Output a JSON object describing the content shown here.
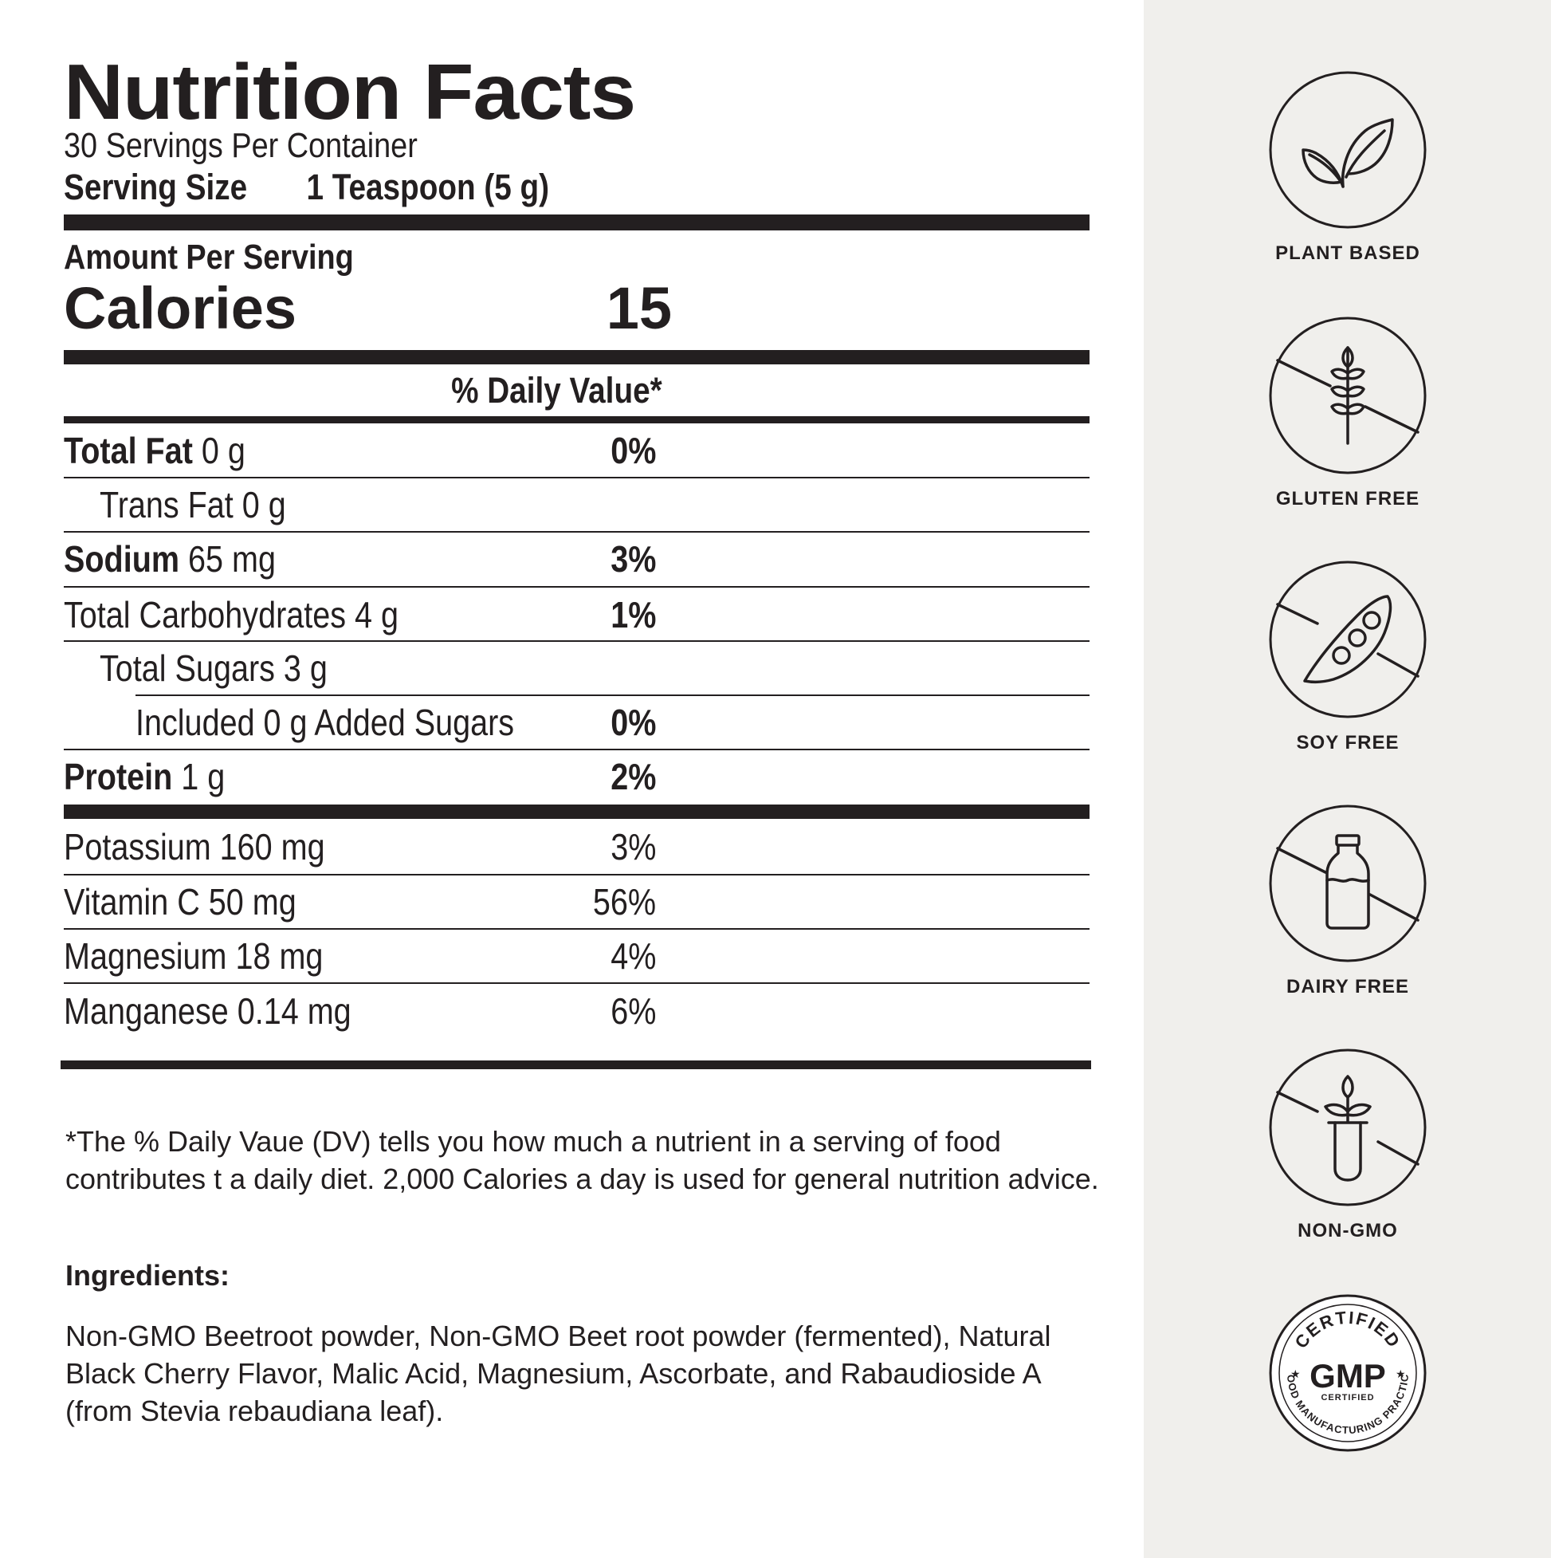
{
  "nutrition_facts": {
    "title": "Nutrition Facts",
    "servings_per_container": "30 Servings Per Container",
    "serving_size_label": "Serving Size",
    "serving_size_value": "1 Teaspoon (5 g)",
    "amount_per_serving": "Amount Per Serving",
    "calories_label": "Calories",
    "calories_value": "15",
    "daily_value_header": "% Daily Value*",
    "rows": [
      {
        "name": "Total Fat",
        "amount": " 0 g",
        "dv": "0%"
      },
      {
        "name": "",
        "amount": "Trans Fat 0 g",
        "dv": ""
      },
      {
        "name": "Sodium",
        "amount": " 65 mg",
        "dv": "3%"
      },
      {
        "name": "",
        "amount": "Total Carbohydrates 4 g",
        "dv": "1%"
      },
      {
        "name": "",
        "amount": "Total Sugars 3 g",
        "dv": ""
      },
      {
        "name": "",
        "amount": "Included 0 g Added Sugars",
        "dv": "0%"
      },
      {
        "name": "Protein",
        "amount": " 1 g",
        "dv": "2%"
      }
    ],
    "minerals": [
      {
        "label": "Potassium 160 mg",
        "dv": "3%"
      },
      {
        "label": "Vitamin C 50 mg",
        "dv": "56%"
      },
      {
        "label": "Magnesium 18 mg",
        "dv": "4%"
      },
      {
        "label": "Manganese 0.14 mg",
        "dv": "6%"
      }
    ],
    "footnote": "*The % Daily Vaue (DV) tells you how much a nutrient in a serving of food contributes t a daily diet. 2,000 Calories a day is used for general nutrition advice.",
    "ingredients_heading": "Ingredients:",
    "ingredients_text": "Non-GMO Beetroot powder, Non-GMO Beet root powder (fermented), Natural Black Cherry Flavor, Malic Acid, Magnesium, Ascorbate, and Rabaudioside A (from Stevia rebaudiana leaf)."
  },
  "badges": [
    {
      "label": "PLANT BASED",
      "icon": "leaf-icon"
    },
    {
      "label": "GLUTEN FREE",
      "icon": "wheat-crossed-icon"
    },
    {
      "label": "SOY FREE",
      "icon": "soy-pod-crossed-icon"
    },
    {
      "label": "DAIRY FREE",
      "icon": "milk-bottle-crossed-icon"
    },
    {
      "label": "NON-GMO",
      "icon": "test-tube-plant-crossed-icon"
    },
    {
      "label": "GMP",
      "icon": "gmp-seal-icon",
      "arc_top": "CERTIFIED",
      "sub": "CERTIFIED",
      "arc_bottom": "GOOD MANUFACTURING PRACTICE"
    }
  ],
  "colors": {
    "text": "#231f20",
    "sidebar_bg": "#f0efec",
    "page_bg": "#ffffff"
  }
}
